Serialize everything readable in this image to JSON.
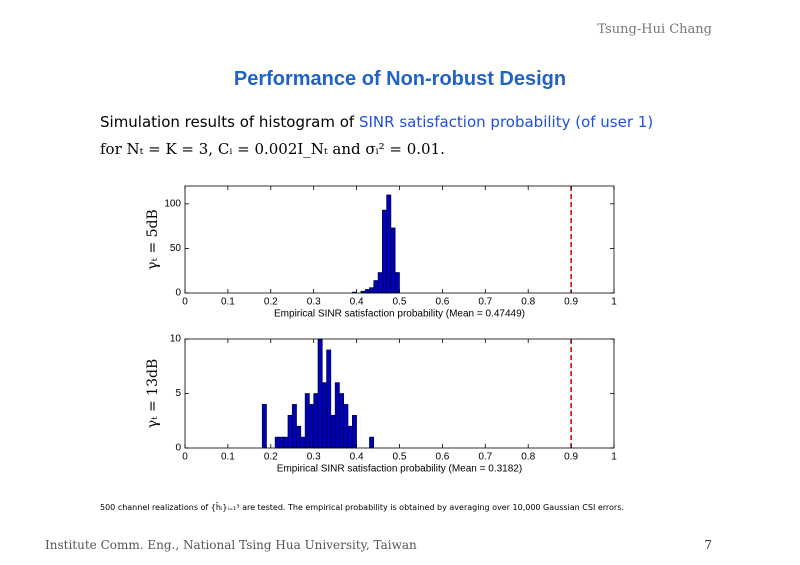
{
  "header": {
    "author": "Tsung-Hui Chang",
    "title": "Performance of Non-robust Design"
  },
  "intro": {
    "lead": "Simulation results of histogram of",
    "highlight": "SINR satisfaction probability (of user 1)",
    "line2": "for Nₜ = K = 3, Cᵢ = 0.002I_Nₜ and σᵢ² = 0.01."
  },
  "footnote": "500 channel realizations of {h̄ᵢ}ᵢ₌₁³ are tested. The empirical probability is obtained by averaging over 10,000 Gaussian CSI errors.",
  "footer": {
    "institution": "Institute Comm. Eng., National Tsing Hua University, Taiwan",
    "page": "7"
  },
  "chart_data": [
    {
      "type": "histogram",
      "ylabel": "γₜ = 5dB",
      "xlabel": "Empirical SINR satisfaction probability (Mean = 0.47449)",
      "bins": [
        0.39,
        0.4,
        0.41,
        0.42,
        0.43,
        0.44,
        0.45,
        0.46,
        0.47,
        0.48,
        0.49,
        0.5
      ],
      "counts": [
        1,
        0,
        2,
        4,
        6,
        14,
        23,
        93,
        110,
        73,
        23
      ],
      "color": "#0000b4",
      "xlim": [
        0,
        1
      ],
      "ylim": [
        0,
        120
      ],
      "xticks": [
        0,
        0.1,
        0.2,
        0.3,
        0.4,
        0.5,
        0.6,
        0.7,
        0.8,
        0.9,
        1
      ],
      "yticks": [
        0,
        50,
        100
      ],
      "reference_line": {
        "x": 0.9,
        "color": "#e00000"
      }
    },
    {
      "type": "histogram",
      "ylabel": "γₜ = 13dB",
      "xlabel": "Empirical SINR satisfaction probability (Mean = 0.3182)",
      "bins": [
        0.18,
        0.19,
        0.2,
        0.21,
        0.22,
        0.23,
        0.24,
        0.25,
        0.26,
        0.27,
        0.28,
        0.29,
        0.3,
        0.31,
        0.32,
        0.33,
        0.34,
        0.35,
        0.36,
        0.37,
        0.38,
        0.39,
        0.4,
        0.41,
        0.42,
        0.43,
        0.44
      ],
      "counts": [
        4,
        0,
        0,
        1,
        1,
        1,
        3,
        4,
        2,
        1,
        5,
        4,
        5,
        10,
        6,
        9,
        3,
        6,
        5,
        4,
        2,
        3,
        0,
        0,
        0,
        1
      ],
      "color": "#0000b4",
      "xlim": [
        0,
        1
      ],
      "ylim": [
        0,
        10
      ],
      "xticks": [
        0,
        0.1,
        0.2,
        0.3,
        0.4,
        0.5,
        0.6,
        0.7,
        0.8,
        0.9,
        1
      ],
      "yticks": [
        0,
        5,
        10
      ],
      "reference_line": {
        "x": 0.9,
        "color": "#e00000"
      }
    }
  ]
}
